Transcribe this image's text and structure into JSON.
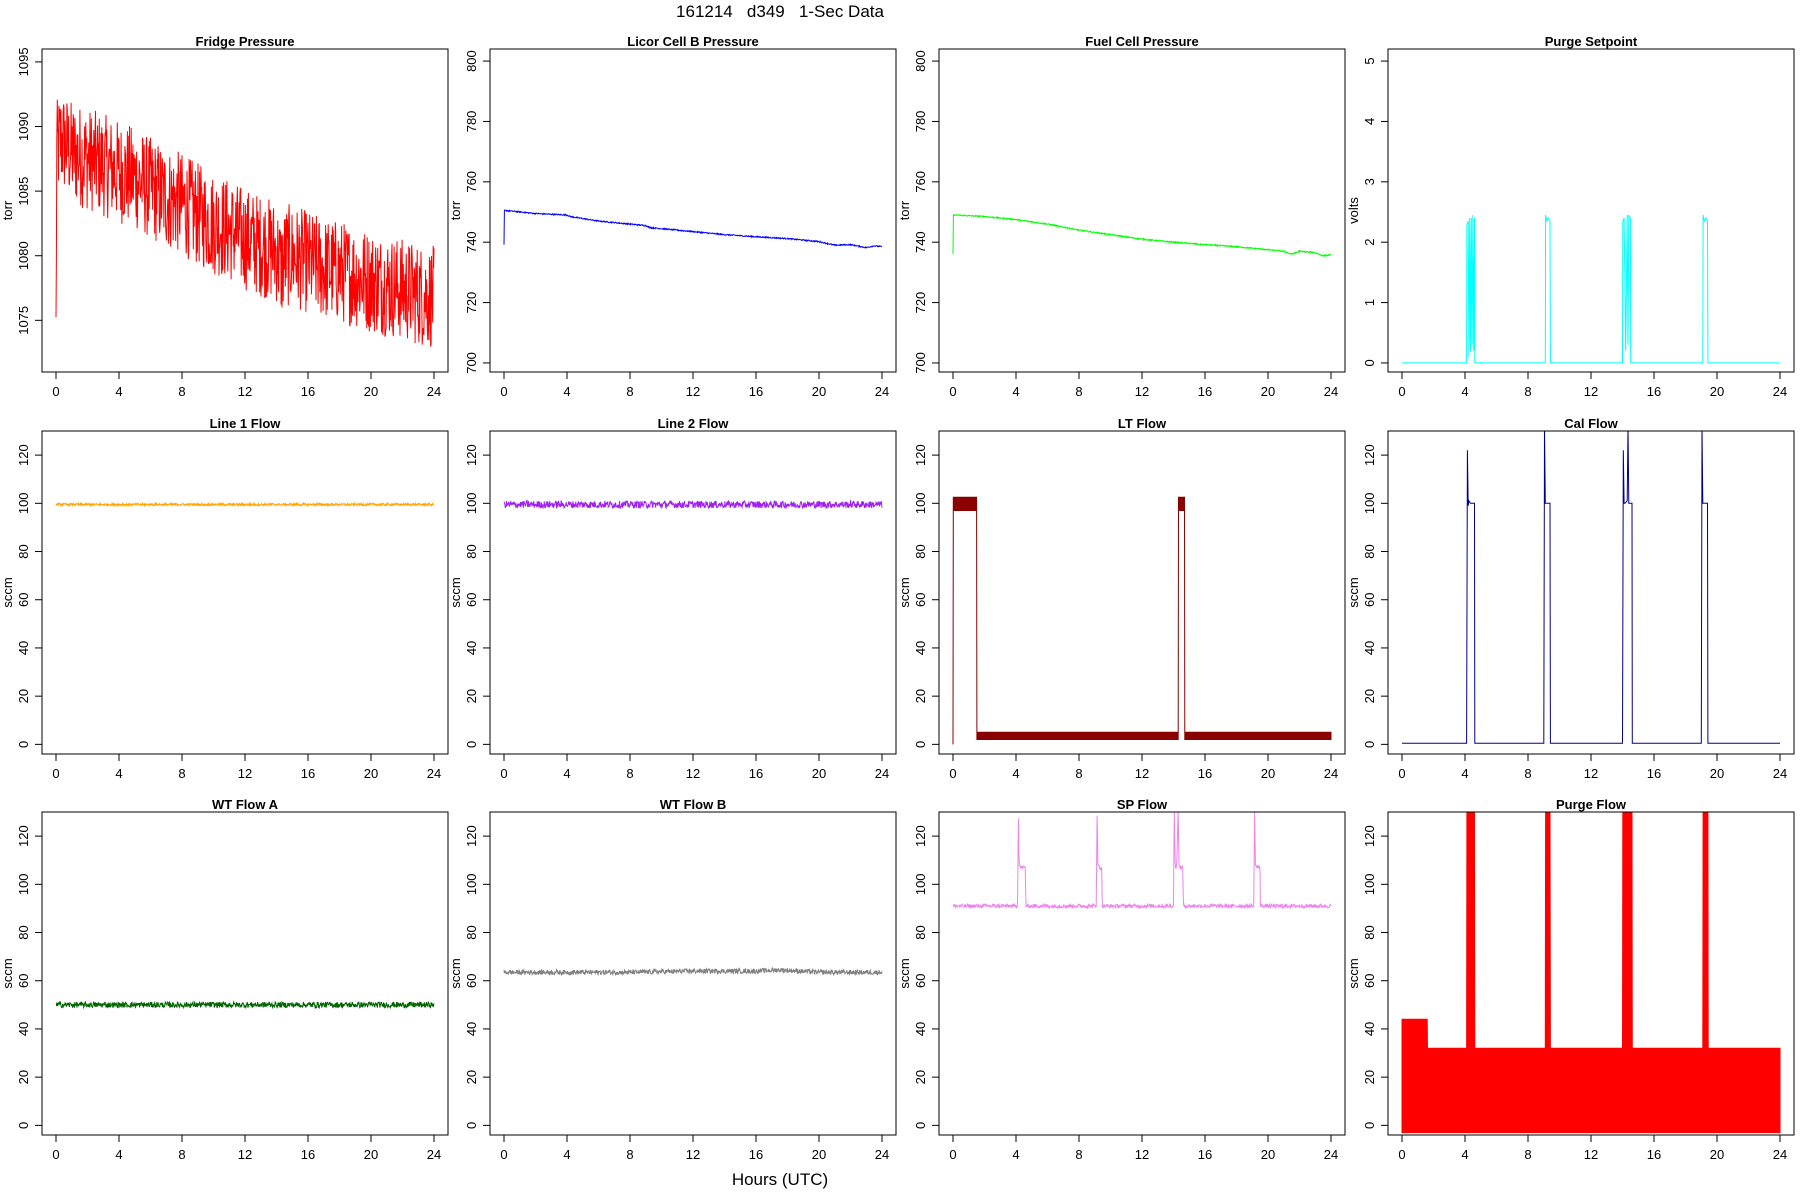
{
  "page": {
    "title": "161214   d349   1-Sec Data",
    "xlabel": "Hours (UTC)"
  },
  "chart_data": [
    {
      "type": "line",
      "title": "Fridge Pressure",
      "ylabel": "torr",
      "xlim": [
        0,
        24
      ],
      "ylim": [
        1071,
        1096
      ],
      "xticks": [
        0,
        4,
        8,
        12,
        16,
        20,
        24
      ],
      "yticks": [
        1075,
        1080,
        1085,
        1090,
        1095
      ],
      "series": [
        {
          "color": "#ff0000",
          "x": [
            0,
            0.05,
            0.3,
            1,
            2,
            3,
            4,
            5,
            6,
            7,
            8,
            9,
            10,
            11,
            12,
            13,
            14,
            14.3,
            14.6,
            15,
            16,
            17,
            18,
            19,
            20,
            21,
            22,
            23,
            24
          ],
          "y": [
            1074,
            1088,
            1089,
            1088,
            1087.5,
            1087,
            1086.5,
            1086,
            1085.2,
            1084.5,
            1084,
            1083.2,
            1082.5,
            1082,
            1081.3,
            1080.8,
            1080.3,
            1079,
            1080,
            1080,
            1079.5,
            1079,
            1078.8,
            1078.4,
            1078,
            1077.7,
            1077.4,
            1077,
            1076.8
          ],
          "noise": 4
        }
      ]
    },
    {
      "type": "line",
      "title": "Licor Cell B Pressure",
      "ylabel": "torr",
      "xlim": [
        0,
        24
      ],
      "ylim": [
        697,
        804
      ],
      "xticks": [
        0,
        4,
        8,
        12,
        16,
        20,
        24
      ],
      "yticks": [
        700,
        720,
        740,
        760,
        780,
        800
      ],
      "series": [
        {
          "color": "#0000ff",
          "x": [
            0,
            0.02,
            0.1,
            2,
            4,
            4.2,
            6,
            8,
            9,
            9.3,
            10,
            12,
            13,
            14,
            16,
            18,
            20,
            21,
            22,
            23,
            23.5,
            24
          ],
          "y": [
            739,
            750.5,
            750.5,
            749.5,
            749,
            748.5,
            747,
            746,
            745.5,
            744.8,
            744.5,
            743.5,
            743,
            742.5,
            741.8,
            741.2,
            740.2,
            739,
            739.2,
            738.2,
            738.8,
            738.5
          ],
          "noise": 0.2
        }
      ]
    },
    {
      "type": "line",
      "title": "Fuel Cell Pressure",
      "ylabel": "torr",
      "xlim": [
        0,
        24
      ],
      "ylim": [
        697,
        804
      ],
      "xticks": [
        0,
        4,
        8,
        12,
        16,
        20,
        24
      ],
      "yticks": [
        700,
        720,
        740,
        760,
        780,
        800
      ],
      "series": [
        {
          "color": "#00ff00",
          "x": [
            0,
            0.02,
            0.1,
            2,
            4,
            6,
            8,
            10,
            12,
            13,
            14,
            16,
            18,
            20,
            21,
            21.5,
            22,
            23,
            23.5,
            24
          ],
          "y": [
            736,
            749,
            749,
            748.5,
            747.5,
            746,
            744,
            742.5,
            741,
            740.5,
            740,
            739.2,
            738.5,
            737.5,
            737,
            736,
            737,
            736.5,
            735.5,
            735.8
          ],
          "noise": 0.2
        }
      ]
    },
    {
      "type": "line",
      "title": "Purge Setpoint",
      "ylabel": "volts",
      "xlim": [
        0,
        24
      ],
      "ylim": [
        -0.15,
        5.2
      ],
      "xticks": [
        0,
        4,
        8,
        12,
        16,
        20,
        24
      ],
      "yticks": [
        0,
        1,
        2,
        3,
        4,
        5
      ],
      "series": [
        {
          "color": "#00ffff",
          "x": [
            0,
            4.1,
            4.12,
            4.2,
            4.25,
            4.3,
            4.35,
            4.4,
            4.45,
            4.5,
            4.55,
            4.6,
            4.62,
            9.1,
            9.12,
            9.2,
            9.3,
            9.4,
            9.42,
            14.0,
            14.02,
            14.1,
            14.2,
            14.3,
            14.35,
            14.4,
            14.5,
            14.52,
            19.1,
            19.12,
            19.2,
            19.3,
            19.4,
            19.42,
            24
          ],
          "y": [
            0,
            0,
            2.3,
            2.35,
            0.1,
            2.4,
            0.2,
            2.4,
            0.3,
            2.45,
            0.2,
            2.4,
            0,
            0,
            2.45,
            2.35,
            2.4,
            2.35,
            0,
            0,
            2.35,
            2.4,
            0.2,
            2.45,
            0.3,
            2.45,
            2.4,
            0,
            0,
            2.45,
            2.35,
            2.4,
            2.35,
            0,
            0
          ],
          "noise": 0
        }
      ]
    },
    {
      "type": "line",
      "title": "Line 1 Flow",
      "ylabel": "sccm",
      "xlim": [
        0,
        24
      ],
      "ylim": [
        -4,
        130
      ],
      "xticks": [
        0,
        4,
        8,
        12,
        16,
        20,
        24
      ],
      "yticks": [
        0,
        20,
        40,
        60,
        80,
        100,
        120
      ],
      "series": [
        {
          "color": "#ffa500",
          "x": [
            0,
            24
          ],
          "y": [
            99.5,
            99.5
          ],
          "noise": 0.5
        }
      ]
    },
    {
      "type": "line",
      "title": "Line 2 Flow",
      "ylabel": "sccm",
      "xlim": [
        0,
        24
      ],
      "ylim": [
        -4,
        130
      ],
      "xticks": [
        0,
        4,
        8,
        12,
        16,
        20,
        24
      ],
      "yticks": [
        0,
        20,
        40,
        60,
        80,
        100,
        120
      ],
      "series": [
        {
          "color": "#a020f0",
          "x": [
            0,
            24
          ],
          "y": [
            99.5,
            99.5
          ],
          "noise": 1.5
        }
      ]
    },
    {
      "type": "area",
      "title": "LT Flow",
      "ylabel": "sccm",
      "xlim": [
        0,
        24
      ],
      "ylim": [
        -4,
        130
      ],
      "xticks": [
        0,
        4,
        8,
        12,
        16,
        20,
        24
      ],
      "yticks": [
        0,
        20,
        40,
        60,
        80,
        100,
        120
      ],
      "series": [
        {
          "color": "#8b0000",
          "x": [
            0,
            0.02,
            0.04,
            1.5,
            1.52,
            14.3,
            14.32,
            14.7,
            14.72,
            24
          ],
          "y": [
            0,
            97,
            97,
            97,
            2,
            2,
            97,
            97,
            2,
            2
          ],
          "upper": [
            0,
            102.5,
            102.5,
            102.5,
            5,
            5,
            102.5,
            102.5,
            5,
            5
          ]
        }
      ]
    },
    {
      "type": "line",
      "title": "Cal Flow",
      "ylabel": "sccm",
      "xlim": [
        0,
        24
      ],
      "ylim": [
        -4,
        130
      ],
      "xticks": [
        0,
        4,
        8,
        12,
        16,
        20,
        24
      ],
      "yticks": [
        0,
        20,
        40,
        60,
        80,
        100,
        120
      ],
      "series": [
        {
          "color": "#00008b",
          "x": [
            0,
            4.1,
            4.15,
            4.2,
            4.25,
            4.35,
            4.5,
            4.6,
            4.62,
            9.0,
            9.05,
            9.1,
            9.2,
            9.35,
            9.4,
            9.42,
            14.0,
            14.05,
            14.1,
            14.15,
            14.3,
            14.35,
            14.4,
            14.5,
            14.6,
            14.62,
            19.0,
            19.05,
            19.1,
            19.2,
            19.35,
            19.4,
            19.42,
            24
          ],
          "y": [
            0.5,
            0.5,
            122,
            99,
            101,
            100,
            100,
            100,
            0.5,
            0.5,
            132,
            100,
            100,
            100,
            100,
            0.5,
            0.5,
            122,
            100,
            100,
            101,
            132,
            100,
            100,
            100,
            0.5,
            0.5,
            132,
            100,
            100,
            100,
            100,
            0.5,
            0.5
          ],
          "noise": 0
        }
      ]
    },
    {
      "type": "line",
      "title": "WT Flow A",
      "ylabel": "sccm",
      "xlim": [
        0,
        24
      ],
      "ylim": [
        -4,
        130
      ],
      "xticks": [
        0,
        4,
        8,
        12,
        16,
        20,
        24
      ],
      "yticks": [
        0,
        20,
        40,
        60,
        80,
        100,
        120
      ],
      "series": [
        {
          "color": "#006400",
          "x": [
            0,
            24
          ],
          "y": [
            50,
            50
          ],
          "noise": 1.2
        }
      ]
    },
    {
      "type": "line",
      "title": "WT Flow B",
      "ylabel": "sccm",
      "xlim": [
        0,
        24
      ],
      "ylim": [
        -4,
        130
      ],
      "xticks": [
        0,
        4,
        8,
        12,
        16,
        20,
        24
      ],
      "yticks": [
        0,
        20,
        40,
        60,
        80,
        100,
        120
      ],
      "series": [
        {
          "color": "#808080",
          "x": [
            0,
            4,
            8,
            12,
            16,
            17.5,
            20,
            24
          ],
          "y": [
            63.5,
            63.5,
            63.5,
            64,
            64,
            64.5,
            63.5,
            63.5
          ],
          "noise": 1
        }
      ]
    },
    {
      "type": "line",
      "title": "SP Flow",
      "ylabel": "sccm",
      "xlim": [
        0,
        24
      ],
      "ylim": [
        -4,
        130
      ],
      "xticks": [
        0,
        4,
        8,
        12,
        16,
        20,
        24
      ],
      "yticks": [
        0,
        20,
        40,
        60,
        80,
        100,
        120
      ],
      "series": [
        {
          "color": "#ee82ee",
          "x": [
            0,
            4.1,
            4.15,
            4.2,
            4.3,
            4.5,
            4.6,
            4.62,
            9.1,
            9.15,
            9.2,
            9.3,
            9.45,
            9.47,
            14.0,
            14.05,
            14.1,
            14.2,
            14.3,
            14.35,
            14.4,
            14.6,
            14.62,
            19.1,
            19.15,
            19.2,
            19.3,
            19.5,
            19.52,
            24
          ],
          "y": [
            91,
            91,
            132,
            108,
            107,
            107,
            107,
            91,
            91,
            132,
            108,
            107,
            107,
            91,
            91,
            132,
            108,
            107,
            132,
            107,
            107,
            107,
            91,
            91,
            132,
            108,
            107,
            107,
            91,
            91
          ],
          "noise": 0.8
        }
      ]
    },
    {
      "type": "area",
      "title": "Purge Flow",
      "ylabel": "sccm",
      "xlim": [
        0,
        24
      ],
      "ylim": [
        -4,
        130
      ],
      "xticks": [
        0,
        4,
        8,
        12,
        16,
        20,
        24
      ],
      "yticks": [
        0,
        20,
        40,
        60,
        80,
        100,
        120
      ],
      "series": [
        {
          "color": "#ff0000",
          "x": [
            0,
            1.6,
            1.62,
            4.1,
            4.12,
            4.6,
            4.62,
            9.1,
            9.12,
            9.4,
            9.42,
            14.0,
            14.02,
            14.6,
            14.62,
            19.1,
            19.12,
            19.42,
            19.44,
            24
          ],
          "y": [
            -3,
            -3,
            -3,
            -3,
            -3,
            -3,
            -3,
            -3,
            -3,
            -3,
            -3,
            -3,
            -3,
            -3,
            -3,
            -3,
            -3,
            -3,
            -3,
            -3
          ],
          "upper": [
            44,
            44,
            32,
            32,
            131,
            131,
            32,
            32,
            131,
            131,
            32,
            32,
            131,
            131,
            32,
            32,
            131,
            131,
            32,
            32
          ]
        }
      ]
    }
  ]
}
